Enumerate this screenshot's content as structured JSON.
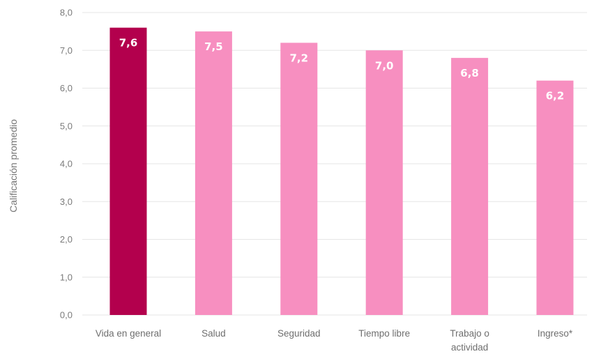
{
  "chart_data": {
    "type": "bar",
    "title": "",
    "xlabel": "",
    "ylabel": "Calificación promedio",
    "ylim": [
      0,
      8
    ],
    "y_ticks": [
      0,
      1,
      2,
      3,
      4,
      5,
      6,
      7,
      8
    ],
    "y_tick_labels": [
      "0,0",
      "1,0",
      "2,0",
      "3,0",
      "4,0",
      "5,0",
      "6,0",
      "7,0",
      "8,0"
    ],
    "categories": [
      [
        "Vida en general"
      ],
      [
        "Salud"
      ],
      [
        "Seguridad"
      ],
      [
        "Tiempo libre"
      ],
      [
        "Trabajo o",
        "actividad"
      ],
      [
        "Ingreso*"
      ]
    ],
    "values": [
      7.6,
      7.5,
      7.2,
      7.0,
      6.8,
      6.2
    ],
    "value_labels": [
      "7,6",
      "7,5",
      "7,2",
      "7,0",
      "6,8",
      "6,2"
    ],
    "grid": true,
    "colors": {
      "highlight": "#b3004d",
      "default": "#f78fc0",
      "grid": "#e6e6e6",
      "axis_text": "#7a7a7a",
      "value_text": "#ffffff"
    },
    "highlight_index": 0
  }
}
